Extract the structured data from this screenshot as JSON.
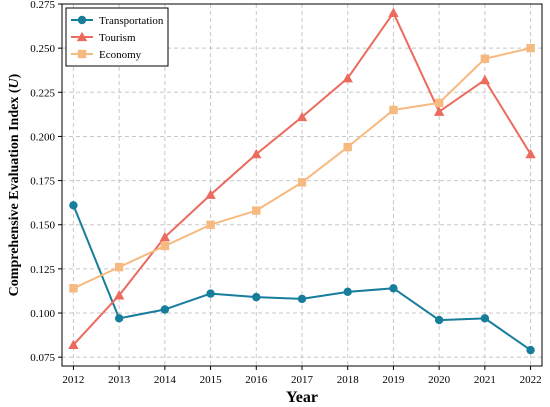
{
  "chart_data": {
    "type": "line",
    "xlabel": "Year",
    "ylabel": "Comprehensive Evaluation Index (",
    "ylabel_symbol": "U",
    "ylabel_close": ")",
    "x": [
      2012,
      2013,
      2014,
      2015,
      2016,
      2017,
      2018,
      2019,
      2020,
      2021,
      2022
    ],
    "xlim": [
      2011.75,
      2022.25
    ],
    "ylim": [
      0.07,
      0.275
    ],
    "yticks": [
      0.075,
      0.1,
      0.125,
      0.15,
      0.175,
      0.2,
      0.225,
      0.25,
      0.275
    ],
    "ytick_labels": [
      "0.075",
      "0.100",
      "0.125",
      "0.150",
      "0.175",
      "0.200",
      "0.225",
      "0.250",
      "0.275"
    ],
    "grid": true,
    "legend_position": "top-left",
    "series": [
      {
        "name": "Transportation",
        "color": "#167d9b",
        "marker": "circle",
        "values": [
          0.161,
          0.097,
          0.102,
          0.111,
          0.109,
          0.108,
          0.112,
          0.114,
          0.096,
          0.097,
          0.079
        ]
      },
      {
        "name": "Tourism",
        "color": "#ec6a5e",
        "marker": "triangle",
        "values": [
          0.082,
          0.11,
          0.143,
          0.167,
          0.19,
          0.211,
          0.233,
          0.27,
          0.214,
          0.232,
          0.19
        ]
      },
      {
        "name": "Economy",
        "color": "#f6ba80",
        "marker": "square",
        "values": [
          0.114,
          0.126,
          0.138,
          0.15,
          0.158,
          0.174,
          0.194,
          0.215,
          0.219,
          0.244,
          0.25
        ]
      }
    ]
  }
}
